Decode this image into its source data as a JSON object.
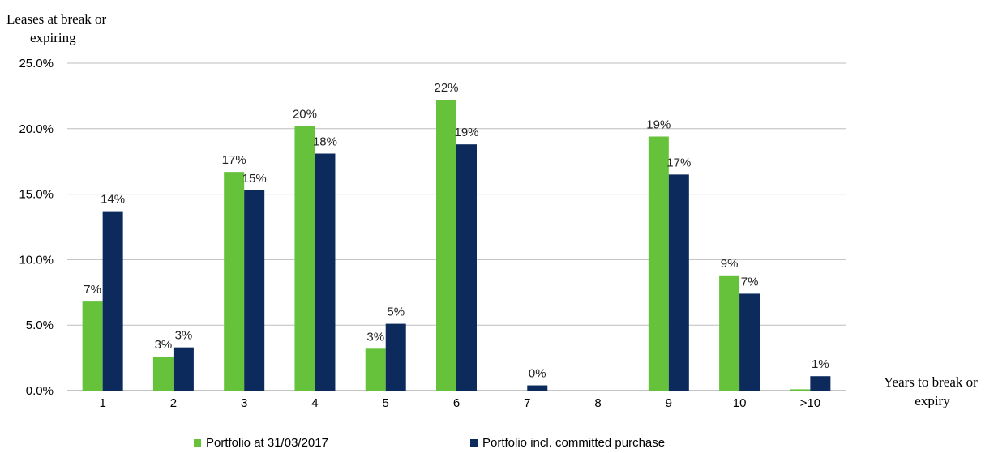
{
  "chart_data": {
    "type": "bar",
    "title": "",
    "ylabel_lines": [
      "Leases at break or",
      "expiring"
    ],
    "xlabel_lines": [
      "Years to break or",
      "expiry"
    ],
    "categories": [
      "1",
      "2",
      "3",
      "4",
      "5",
      "6",
      "7",
      "8",
      "9",
      "10",
      ">10"
    ],
    "ylim": [
      0,
      25
    ],
    "yticks": [
      "0.0%",
      "5.0%",
      "10.0%",
      "15.0%",
      "20.0%",
      "25.0%"
    ],
    "ytick_values": [
      0,
      5,
      10,
      15,
      20,
      25
    ],
    "grid": true,
    "legend_position": "bottom",
    "series": [
      {
        "name": "Portfolio at 31/03/2017",
        "color": "#66c23a",
        "values": [
          6.8,
          2.6,
          16.7,
          20.2,
          3.2,
          22.2,
          0,
          0,
          19.4,
          8.8,
          0.1
        ],
        "labels": [
          "7%",
          "3%",
          "17%",
          "20%",
          "3%",
          "22%",
          "",
          "",
          "19%",
          "9%",
          ""
        ]
      },
      {
        "name": "Portfolio incl. committed purchase",
        "color": "#0c2a5b",
        "values": [
          13.7,
          3.3,
          15.3,
          18.1,
          5.1,
          18.8,
          0.4,
          0,
          16.5,
          7.4,
          1.1
        ],
        "labels": [
          "14%",
          "3%",
          "15%",
          "18%",
          "5%",
          "19%",
          "0%",
          "",
          "17%",
          "7%",
          "1%"
        ]
      }
    ]
  }
}
